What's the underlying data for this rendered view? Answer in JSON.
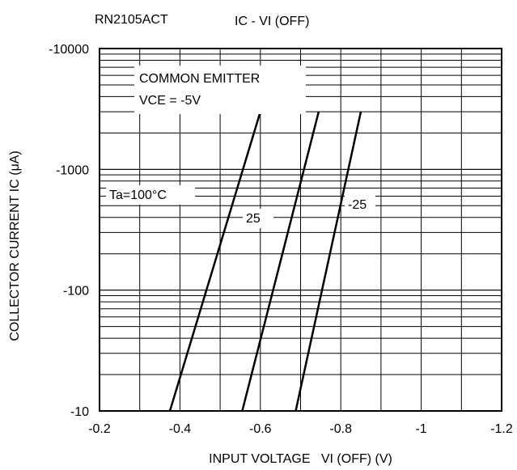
{
  "chart_data": {
    "type": "line",
    "part_number": "RN2105ACT",
    "title": "IC - VI (OFF)",
    "xlabel": "INPUT VOLTAGE   VI (OFF) (V)",
    "ylabel": "COLLECTOR CURRENT  IC (μA)",
    "x_reversed": true,
    "y_scale": "log",
    "xlim": [
      -0.2,
      -1.2
    ],
    "ylim": [
      -10,
      -10000
    ],
    "x_ticks": [
      -0.2,
      -0.4,
      -0.6,
      -0.8,
      -1.0,
      -1.2
    ],
    "x_tick_labels": [
      "-0.2",
      "-0.4",
      "-0.6",
      "-0.8",
      "-1",
      "-1.2"
    ],
    "y_ticks": [
      -10,
      -100,
      -1000,
      -10000
    ],
    "y_tick_labels": [
      "-10",
      "-100",
      "-1000",
      "-10000"
    ],
    "grid": true,
    "annotations": {
      "condition_1": "COMMON EMITTER",
      "condition_2": "VCE = -5V"
    },
    "series": [
      {
        "name": "Ta=100°C",
        "x": [
          -0.375,
          -0.6
        ],
        "y": [
          -10,
          -3000
        ]
      },
      {
        "name": "25",
        "x": [
          -0.555,
          -0.745
        ],
        "y": [
          -10,
          -3000
        ]
      },
      {
        "name": "-25",
        "x": [
          -0.688,
          -0.85
        ],
        "y": [
          -10,
          -3000
        ]
      }
    ],
    "line_color": "#000000"
  }
}
